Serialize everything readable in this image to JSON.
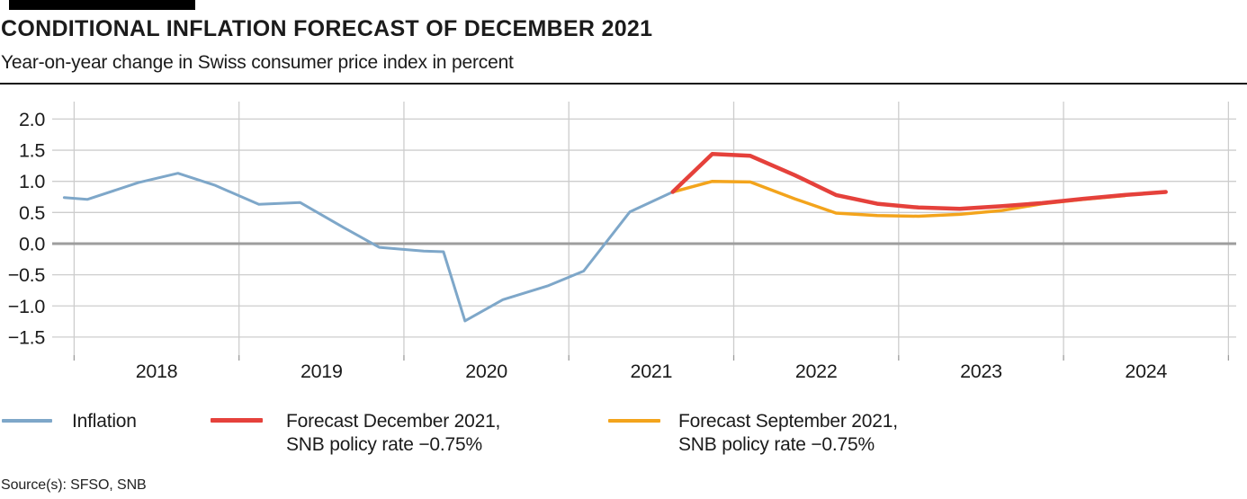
{
  "header": {
    "title": "CONDITIONAL INFLATION FORECAST OF DECEMBER 2021",
    "subtitle": "Year-on-year change in Swiss consumer price index in percent"
  },
  "source": "Source(s): SFSO, SNB",
  "colors": {
    "inflation": "#7ea7c9",
    "forecast_december": "#e5413b",
    "forecast_september": "#f3a41c",
    "grid": "#cdcdcd",
    "zero_line": "#9d9d9d",
    "tick": "#9d9d9d",
    "text": "#1b1b1b"
  },
  "legend": {
    "items": [
      {
        "series": "inflation",
        "label": "Inflation",
        "label2": ""
      },
      {
        "series": "forecast_december",
        "label": "Forecast December 2021,",
        "label2": "SNB policy rate −0.75%"
      },
      {
        "series": "forecast_september",
        "label": "Forecast September 2021,",
        "label2": "SNB policy rate −0.75%"
      }
    ]
  },
  "chart_data": {
    "type": "line",
    "title": "Conditional inflation forecast of December 2021",
    "ylabel": "Year-on-year change in Swiss consumer price index in percent",
    "grid": true,
    "x_axis": {
      "range": [
        2017.867,
        2025.047
      ],
      "gridline_years": [
        2018,
        2019,
        2020,
        2021,
        2022,
        2023,
        2024,
        2025
      ],
      "tick_labels": [
        "2018",
        "2019",
        "2020",
        "2021",
        "2022",
        "2023",
        "2024"
      ],
      "tick_label_centers": [
        2018.5,
        2019.5,
        2020.5,
        2021.5,
        2022.5,
        2023.5,
        2024.5
      ]
    },
    "y_axis": {
      "range": [
        -1.79,
        2.28
      ],
      "ticks": [
        {
          "v": 2.0,
          "label": "2.0"
        },
        {
          "v": 1.5,
          "label": "1.5"
        },
        {
          "v": 1.0,
          "label": "1.0"
        },
        {
          "v": 0.5,
          "label": "0.5"
        },
        {
          "v": 0.0,
          "label": "0.0"
        },
        {
          "v": -0.5,
          "label": "−0.5"
        },
        {
          "v": -1.0,
          "label": "−1.0"
        },
        {
          "v": -1.5,
          "label": "−1.5"
        }
      ]
    },
    "series": [
      {
        "id": "inflation",
        "name": "Inflation",
        "color": "#7ea7c9",
        "stroke_width": 3,
        "points": [
          [
            2017.94,
            0.74
          ],
          [
            2018.08,
            0.71
          ],
          [
            2018.39,
            0.98
          ],
          [
            2018.63,
            1.13
          ],
          [
            2018.85,
            0.94
          ],
          [
            2019.12,
            0.63
          ],
          [
            2019.37,
            0.66
          ],
          [
            2019.62,
            0.28
          ],
          [
            2019.85,
            -0.06
          ],
          [
            2020.12,
            -0.12
          ],
          [
            2020.24,
            -0.13
          ],
          [
            2020.37,
            -1.24
          ],
          [
            2020.6,
            -0.9
          ],
          [
            2020.87,
            -0.68
          ],
          [
            2021.09,
            -0.44
          ],
          [
            2021.37,
            0.51
          ],
          [
            2021.63,
            0.83
          ]
        ]
      },
      {
        "id": "forecast_september",
        "name": "Forecast September 2021, SNB policy rate −0.75%",
        "color": "#f3a41c",
        "stroke_width": 3.5,
        "points": [
          [
            2021.63,
            0.83
          ],
          [
            2021.87,
            1.0
          ],
          [
            2022.1,
            0.99
          ],
          [
            2022.37,
            0.72
          ],
          [
            2022.62,
            0.49
          ],
          [
            2022.87,
            0.45
          ],
          [
            2023.12,
            0.44
          ],
          [
            2023.37,
            0.47
          ],
          [
            2023.62,
            0.53
          ],
          [
            2023.87,
            0.64
          ],
          [
            2024.12,
            0.71
          ],
          [
            2024.37,
            0.77
          ]
        ]
      },
      {
        "id": "forecast_december",
        "name": "Forecast December 2021, SNB policy rate −0.75%",
        "color": "#e5413b",
        "stroke_width": 4.5,
        "points": [
          [
            2021.63,
            0.83
          ],
          [
            2021.87,
            1.44
          ],
          [
            2022.1,
            1.41
          ],
          [
            2022.37,
            1.1
          ],
          [
            2022.62,
            0.78
          ],
          [
            2022.87,
            0.64
          ],
          [
            2023.12,
            0.58
          ],
          [
            2023.37,
            0.56
          ],
          [
            2023.62,
            0.6
          ],
          [
            2023.87,
            0.65
          ],
          [
            2024.12,
            0.72
          ],
          [
            2024.37,
            0.78
          ],
          [
            2024.62,
            0.83
          ]
        ]
      }
    ]
  }
}
